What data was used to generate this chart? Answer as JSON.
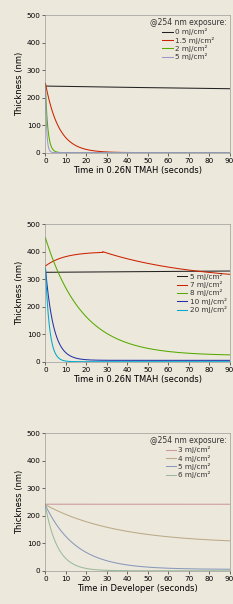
{
  "panel1": {
    "title": "@254 nm exposure:",
    "xlabel": "Time in 0.26N TMAH (seconds)",
    "ylabel": "Thickness (nm)",
    "ylim": [
      0,
      500
    ],
    "xlim": [
      0,
      90
    ],
    "xticks": [
      0,
      10,
      20,
      30,
      40,
      50,
      60,
      70,
      80,
      90
    ],
    "yticks": [
      0,
      100,
      200,
      300,
      400,
      500
    ],
    "curves": [
      {
        "label": "0 mJ/cm²",
        "color": "#222222",
        "type": "flat",
        "y0": 242,
        "yend": 205,
        "tau": 300
      },
      {
        "label": "1.5 mJ/cm²",
        "color": "#cc2200",
        "type": "decay",
        "y0": 252,
        "yend": 0,
        "tau": 6.5
      },
      {
        "label": "2 mJ/cm²",
        "color": "#55aa00",
        "type": "fast_decay",
        "y0": 240,
        "yend": 0,
        "tau": 1.2
      },
      {
        "label": "5 mJ/cm²",
        "color": "#9999cc",
        "type": "fast_decay",
        "y0": 235,
        "yend": 0,
        "tau": 0.6
      }
    ],
    "legend_loc": "upper right"
  },
  "panel2": {
    "title": null,
    "xlabel": "Time in 0.26N TMAH (seconds)",
    "ylabel": "Thickness (nm)",
    "ylim": [
      0,
      500
    ],
    "xlim": [
      0,
      90
    ],
    "xticks": [
      0,
      10,
      20,
      30,
      40,
      50,
      60,
      70,
      80,
      90
    ],
    "yticks": [
      0,
      100,
      200,
      300,
      400,
      500
    ],
    "curves": [
      {
        "label": "5 mJ/cm²",
        "color": "#222222",
        "type": "flat",
        "y0": 325,
        "yend": 348,
        "tau": 400
      },
      {
        "label": "7 mJ/cm²",
        "color": "#cc2200",
        "type": "swell",
        "y0": 348,
        "peak": 400,
        "tpeak": 28,
        "yend": 290,
        "tau": 45
      },
      {
        "label": "8 mJ/cm²",
        "color": "#55aa00",
        "type": "decay",
        "y0": 450,
        "yend": 22,
        "tau": 18
      },
      {
        "label": "10 mJ/cm²",
        "color": "#2233aa",
        "type": "fast_decay",
        "y0": 340,
        "yend": 5,
        "tau": 4
      },
      {
        "label": "20 mJ/cm²",
        "color": "#00aacc",
        "type": "fast_decay",
        "y0": 340,
        "yend": 0,
        "tau": 2
      }
    ],
    "legend_loc": "center right"
  },
  "panel3": {
    "title": "@254 nm exposure:",
    "xlabel": "Time in Developer (seconds)",
    "ylabel": "Thickness (nm)",
    "ylim": [
      0,
      500
    ],
    "xlim": [
      0,
      90
    ],
    "xticks": [
      0,
      10,
      20,
      30,
      40,
      50,
      60,
      70,
      80,
      90
    ],
    "yticks": [
      0,
      100,
      200,
      300,
      400,
      500
    ],
    "curves": [
      {
        "label": "3 mJ/cm²",
        "color": "#cc9999",
        "type": "flat",
        "y0": 242,
        "yend": 238,
        "tau": 2000
      },
      {
        "label": "4 mJ/cm²",
        "color": "#bbaa88",
        "type": "slow_decay",
        "y0": 240,
        "yend": 98,
        "tau": 35
      },
      {
        "label": "5 mJ/cm²",
        "color": "#8899bb",
        "type": "slow_decay",
        "y0": 238,
        "yend": 5,
        "tau": 15
      },
      {
        "label": "6 mJ/cm²",
        "color": "#99bb99",
        "type": "fast_decay",
        "y0": 235,
        "yend": 0,
        "tau": 6
      }
    ],
    "legend_loc": "upper right"
  },
  "bg_color": "#ede8dc",
  "legend_fontsize": 5.2,
  "axis_fontsize": 6.0,
  "tick_fontsize": 5.2,
  "title_fontsize": 5.5
}
